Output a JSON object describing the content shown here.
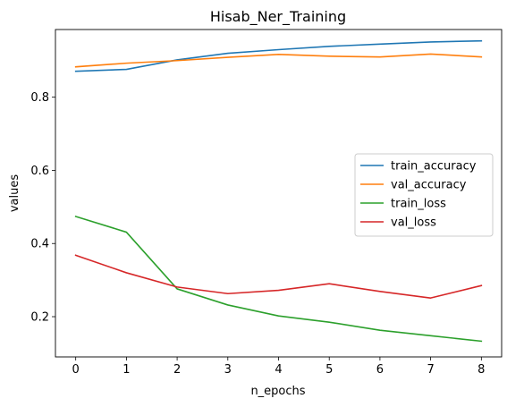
{
  "chart_data": {
    "type": "line",
    "title": "Hisab_Ner_Training",
    "xlabel": "n_epochs",
    "ylabel": "values",
    "x": [
      0,
      1,
      2,
      3,
      4,
      5,
      6,
      7,
      8
    ],
    "xlim": [
      -0.4,
      8.4
    ],
    "ylim": [
      0.09,
      0.985
    ],
    "xticks": [
      0,
      1,
      2,
      3,
      4,
      5,
      6,
      7,
      8
    ],
    "yticks": [
      0.2,
      0.4,
      0.6,
      0.8
    ],
    "ytick_labels": [
      "0.2",
      "0.4",
      "0.6",
      "0.8"
    ],
    "grid": false,
    "legend_position": "center-right",
    "series": [
      {
        "name": "train_accuracy",
        "color": "#1f77b4",
        "values": [
          0.871,
          0.876,
          0.902,
          0.92,
          0.93,
          0.939,
          0.945,
          0.951,
          0.954
        ]
      },
      {
        "name": "val_accuracy",
        "color": "#ff7f0e",
        "values": [
          0.883,
          0.893,
          0.9,
          0.909,
          0.917,
          0.912,
          0.91,
          0.918,
          0.91
        ]
      },
      {
        "name": "train_loss",
        "color": "#2ca02c",
        "values": [
          0.474,
          0.431,
          0.276,
          0.232,
          0.202,
          0.185,
          0.163,
          0.148,
          0.133
        ]
      },
      {
        "name": "val_loss",
        "color": "#d62728",
        "values": [
          0.368,
          0.32,
          0.281,
          0.263,
          0.272,
          0.29,
          0.269,
          0.251,
          0.285
        ]
      }
    ]
  }
}
